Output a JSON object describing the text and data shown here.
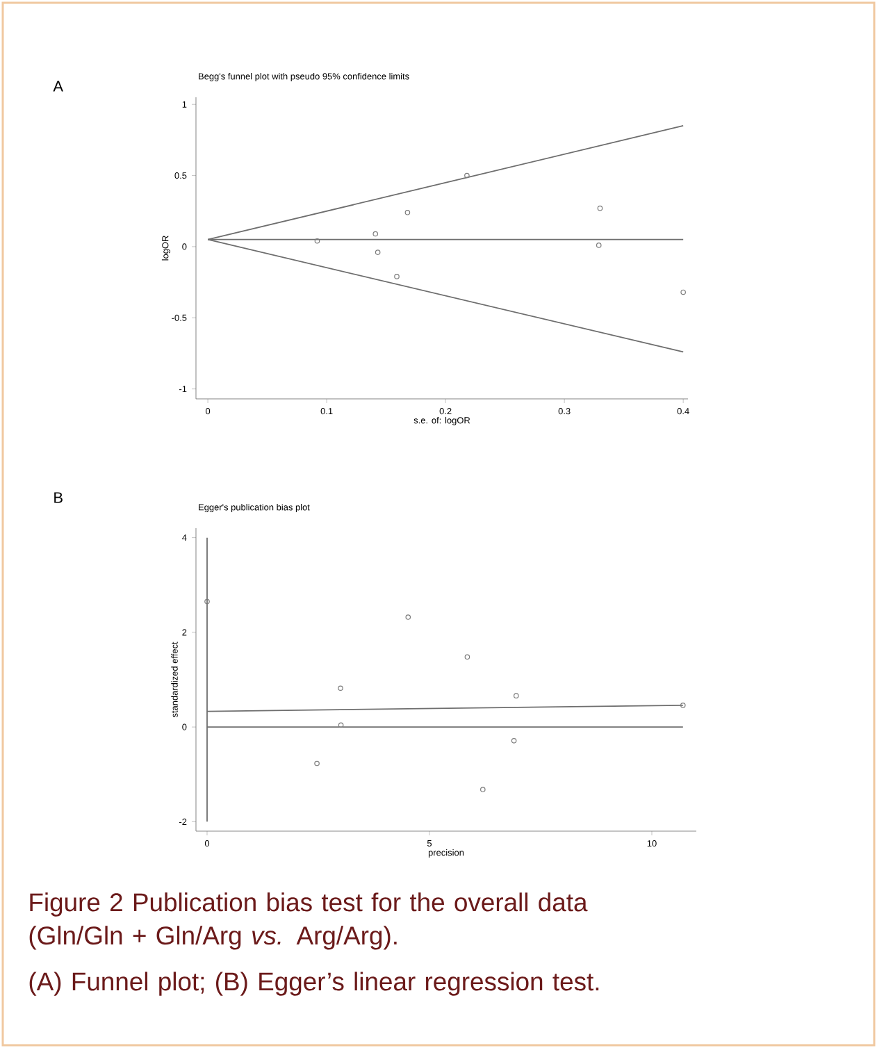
{
  "chart_data": [
    {
      "type": "scatter",
      "title": "Begg's funnel plot with pseudo 95% confidence limits",
      "xlabel": "s.e. of: logOR",
      "ylabel": "logOR",
      "xlim": [
        -0.01,
        0.404
      ],
      "ylim": [
        -1.07,
        1.05
      ],
      "xticks": [
        0,
        0.1,
        0.2,
        0.3,
        0.4
      ],
      "yticks": [
        -1,
        -0.5,
        0,
        0.5,
        1
      ],
      "grid": false,
      "annotations": [
        "A"
      ],
      "series": [
        {
          "type": "line",
          "color": "#6e6e6e",
          "x": [
            0,
            0.4
          ],
          "values": [
            0.05,
            0.85
          ]
        },
        {
          "type": "line",
          "color": "#6e6e6e",
          "x": [
            0,
            0.4
          ],
          "values": [
            0.05,
            -0.74
          ]
        },
        {
          "type": "line",
          "color": "#6e6e6e",
          "x": [
            0,
            0.4
          ],
          "values": [
            0.05,
            0.05
          ]
        },
        {
          "marker": "circle",
          "color": "#7a7a7a",
          "x": [
            0.092,
            0.141,
            0.143,
            0.159,
            0.168,
            0.218,
            0.33,
            0.329,
            0.4
          ],
          "values": [
            0.04,
            0.09,
            -0.04,
            -0.21,
            0.24,
            0.5,
            0.27,
            0.01,
            -0.32
          ]
        }
      ]
    },
    {
      "type": "scatter",
      "title": "Egger's publication bias plot",
      "xlabel": "precision",
      "ylabel": "standardized effect",
      "xlim": [
        -0.25,
        11
      ],
      "ylim": [
        -2.2,
        4.2
      ],
      "xticks": [
        0,
        5,
        10
      ],
      "yticks": [
        -2,
        0,
        2,
        4
      ],
      "grid": false,
      "annotations": [
        "B",
        "Figure 2    Publication bias test for the overall data (Gln/Gln + Gln/Arg *vs.* Arg/Arg).",
        "(A) Funnel plot; (B) Egger’s linear regression test."
      ],
      "series": [
        {
          "type": "line",
          "color": "#6e6e6e",
          "x": [
            0,
            0
          ],
          "values": [
            -2,
            4
          ]
        },
        {
          "type": "line",
          "color": "#6e6e6e",
          "x": [
            0,
            10.7
          ],
          "values": [
            0.33,
            0.46
          ]
        },
        {
          "type": "line",
          "color": "#6e6e6e",
          "x": [
            0,
            10.7
          ],
          "values": [
            0,
            0
          ]
        },
        {
          "marker": "circle",
          "color": "#7a7a7a",
          "x": [
            0,
            2.47,
            3.0,
            3.01,
            4.52,
            5.85,
            6.2,
            6.9,
            6.95,
            10.7
          ],
          "values": [
            2.65,
            -0.77,
            0.82,
            0.04,
            2.32,
            1.48,
            -1.32,
            -0.29,
            0.66,
            0.46
          ]
        }
      ]
    }
  ]
}
